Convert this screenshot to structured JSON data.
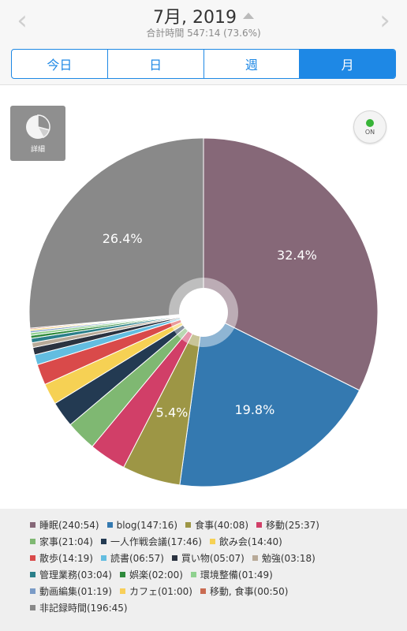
{
  "header": {
    "title": "7月, 2019",
    "subtitle": "合計時間 547:14 (73.6%)",
    "prev_glyph": "‹",
    "next_glyph": "›"
  },
  "tabs": [
    {
      "label": "今日",
      "active": false
    },
    {
      "label": "日",
      "active": false
    },
    {
      "label": "週",
      "active": false
    },
    {
      "label": "月",
      "active": true
    }
  ],
  "detail_button": {
    "label": "詳細"
  },
  "toggle": {
    "label": "ON"
  },
  "colors": {
    "accent": "#1e88e5"
  },
  "chart_data": {
    "type": "pie",
    "slices": [
      {
        "label": "睡眠",
        "time": "240:54",
        "value": 240.9,
        "color": "#866878",
        "pct_label": "32.4%"
      },
      {
        "label": "blog",
        "time": "147:16",
        "value": 147.27,
        "color": "#3479b0",
        "pct_label": "19.8%"
      },
      {
        "label": "食事",
        "time": "40:08",
        "value": 40.13,
        "color": "#9d9645",
        "pct_label": "5.4%"
      },
      {
        "label": "移動",
        "time": "25:37",
        "value": 25.62,
        "color": "#d13f68",
        "pct_label": ""
      },
      {
        "label": "家事",
        "time": "21:04",
        "value": 21.07,
        "color": "#7fb872",
        "pct_label": ""
      },
      {
        "label": "一人作戦会議",
        "time": "17:46",
        "value": 17.77,
        "color": "#233a52",
        "pct_label": ""
      },
      {
        "label": "飲み会",
        "time": "14:40",
        "value": 14.67,
        "color": "#f6d154",
        "pct_label": ""
      },
      {
        "label": "散歩",
        "time": "14:19",
        "value": 14.32,
        "color": "#d94a4a",
        "pct_label": ""
      },
      {
        "label": "読書",
        "time": "06:57",
        "value": 6.95,
        "color": "#63bde0",
        "pct_label": ""
      },
      {
        "label": "買い物",
        "time": "05:07",
        "value": 5.12,
        "color": "#2b3340",
        "pct_label": ""
      },
      {
        "label": "勉強",
        "time": "03:18",
        "value": 3.3,
        "color": "#b8aa98",
        "pct_label": ""
      },
      {
        "label": "管理業務",
        "time": "03:04",
        "value": 3.07,
        "color": "#2a7f8a",
        "pct_label": ""
      },
      {
        "label": "娯楽",
        "time": "02:00",
        "value": 2.0,
        "color": "#2f8a3c",
        "pct_label": ""
      },
      {
        "label": "環境整備",
        "time": "01:49",
        "value": 1.82,
        "color": "#8fd18f",
        "pct_label": ""
      },
      {
        "label": "動画編集",
        "time": "01:19",
        "value": 1.32,
        "color": "#7a9bc6",
        "pct_label": ""
      },
      {
        "label": "カフェ",
        "time": "01:00",
        "value": 1.0,
        "color": "#f8cf5a",
        "pct_label": ""
      },
      {
        "label": "移動, 食事",
        "time": "00:50",
        "value": 0.83,
        "color": "#c96b52",
        "pct_label": ""
      },
      {
        "label": "非記録時間",
        "time": "196:45",
        "value": 196.75,
        "color": "#898989",
        "pct_label": "26.4%"
      }
    ]
  },
  "legend_rows": [
    [
      0,
      1,
      2,
      3
    ],
    [
      4,
      5,
      6
    ],
    [
      7,
      8,
      9,
      10
    ],
    [
      11,
      12,
      13
    ],
    [
      14,
      15,
      16
    ],
    [
      17
    ]
  ]
}
